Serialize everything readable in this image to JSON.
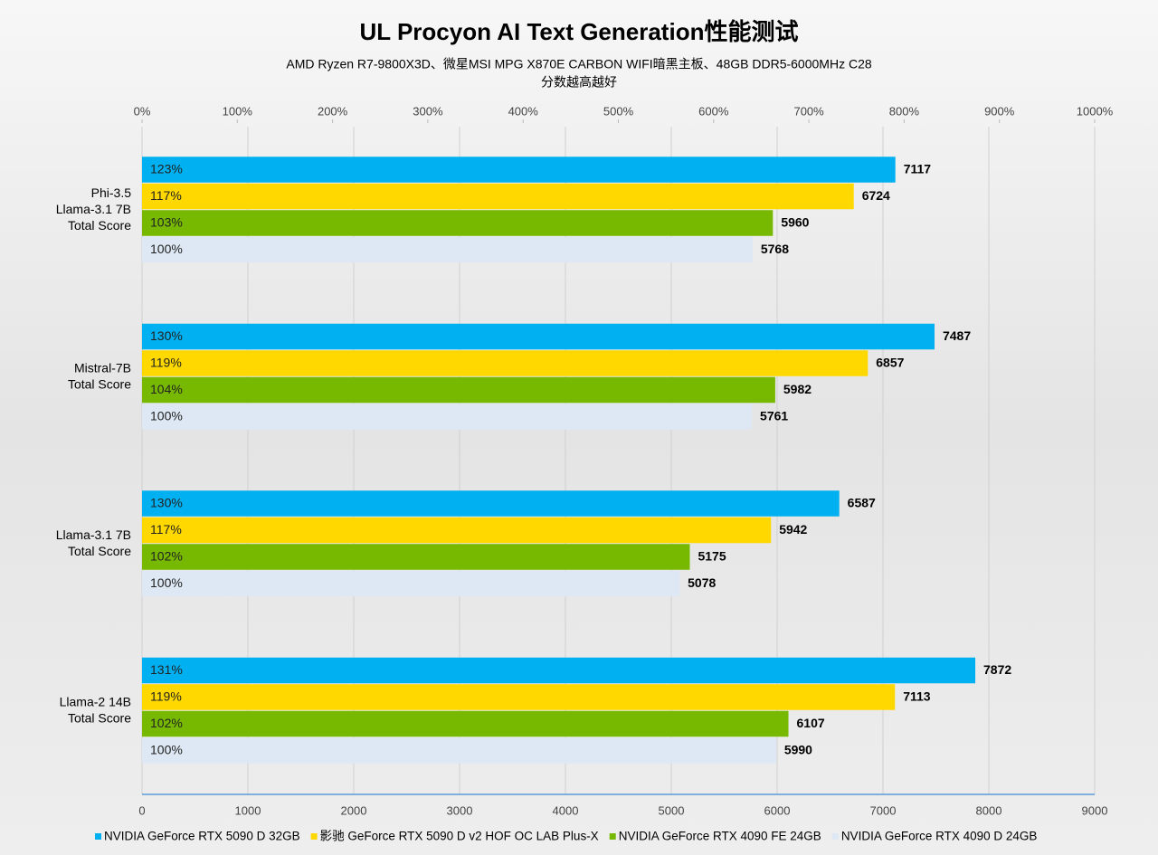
{
  "chart_data": {
    "type": "bar",
    "orientation": "horizontal",
    "title": "UL Procyon AI Text Generation性能测试",
    "subtitle": "AMD Ryzen R7-9800X3D、微星MSI MPG X870E CARBON  WIFI暗黑主板、48GB DDR5-6000MHz C28",
    "note": "分数越高越好",
    "categories": [
      [
        "Phi-3.5",
        "Llama-3.1 7B",
        "Total Score"
      ],
      [
        "Mistral-7B",
        "Total Score"
      ],
      [
        "Llama-3.1 7B",
        "Total Score"
      ],
      [
        "Llama-2 14B",
        "Total Score"
      ]
    ],
    "series": [
      {
        "name": "NVIDIA GeForce RTX 5090 D 32GB",
        "color": "#00b0f0",
        "values": [
          7117,
          7487,
          6587,
          7872
        ],
        "percent_labels": [
          "123%",
          "130%",
          "130%",
          "131%"
        ]
      },
      {
        "name": "影驰 GeForce RTX 5090 D v2 HOF OC LAB Plus-X",
        "color": "#ffd800",
        "values": [
          6724,
          6857,
          5942,
          7113
        ],
        "percent_labels": [
          "117%",
          "119%",
          "117%",
          "119%"
        ]
      },
      {
        "name": "NVIDIA GeForce RTX 4090 FE 24GB",
        "color": "#76b900",
        "values": [
          5960,
          5982,
          5175,
          6107
        ],
        "percent_labels": [
          "103%",
          "104%",
          "102%",
          "102%"
        ]
      },
      {
        "name": "NVIDIA GeForce RTX 4090 D 24GB",
        "color": "#dde8f4",
        "values": [
          5768,
          5761,
          5078,
          5990
        ],
        "percent_labels": [
          "100%",
          "100%",
          "100%",
          "100%"
        ]
      }
    ],
    "xlim": [
      0,
      9000
    ],
    "xticks": [
      0,
      1000,
      2000,
      3000,
      4000,
      5000,
      6000,
      7000,
      8000,
      9000
    ],
    "x2lim": [
      0,
      1000
    ],
    "x2ticks": [
      {
        "value": 0,
        "label": "0%"
      },
      {
        "value": 100,
        "label": "100%"
      },
      {
        "value": 200,
        "label": "200%"
      },
      {
        "value": 300,
        "label": "300%"
      },
      {
        "value": 400,
        "label": "400%"
      },
      {
        "value": 500,
        "label": "500%"
      },
      {
        "value": 600,
        "label": "600%"
      },
      {
        "value": 700,
        "label": "700%"
      },
      {
        "value": 800,
        "label": "800%"
      },
      {
        "value": 900,
        "label": "900%"
      },
      {
        "value": 1000,
        "label": "1000%"
      }
    ],
    "grid": true
  }
}
